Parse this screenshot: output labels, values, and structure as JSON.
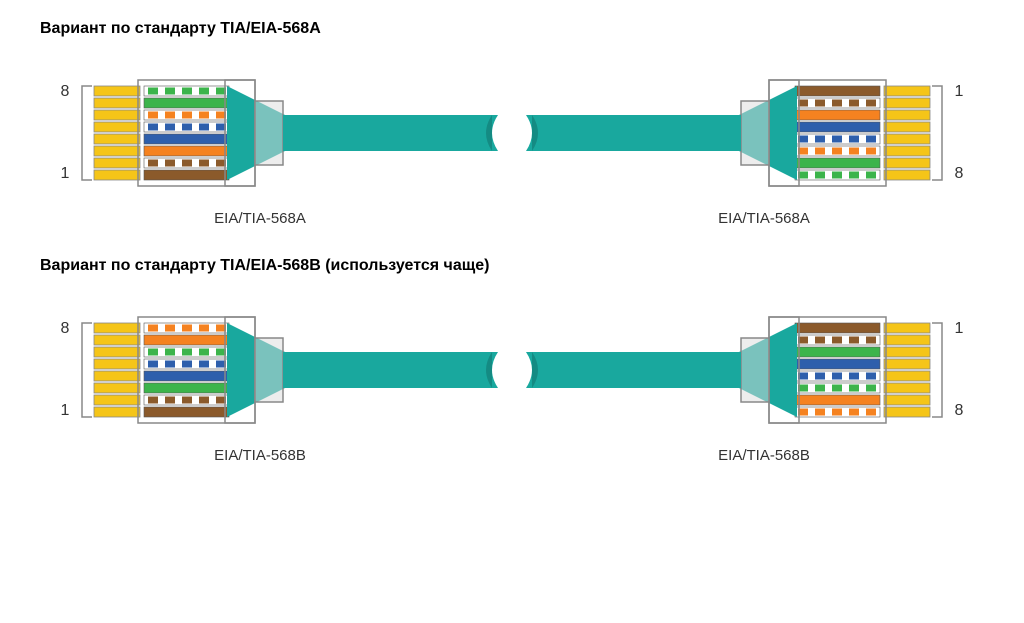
{
  "standards": {
    "A": {
      "title": "Вариант по стандарту TIA/EIA-568A",
      "label": "EIA/TIA-568A",
      "wires": [
        {
          "color": "#8B5A2B",
          "stripe": false,
          "stripe_color": null
        },
        {
          "color": "#ffffff",
          "stripe": true,
          "stripe_color": "#8B5A2B"
        },
        {
          "color": "#F58220",
          "stripe": false,
          "stripe_color": null
        },
        {
          "color": "#2E5FAC",
          "stripe": false,
          "stripe_color": null
        },
        {
          "color": "#ffffff",
          "stripe": true,
          "stripe_color": "#2E5FAC"
        },
        {
          "color": "#ffffff",
          "stripe": true,
          "stripe_color": "#F58220"
        },
        {
          "color": "#3CB44B",
          "stripe": false,
          "stripe_color": null
        },
        {
          "color": "#ffffff",
          "stripe": true,
          "stripe_color": "#3CB44B"
        }
      ]
    },
    "B": {
      "title": "Вариант по стандарту TIA/EIA-568B (используется чаще)",
      "label": "EIA/TIA-568B",
      "wires": [
        {
          "color": "#8B5A2B",
          "stripe": false,
          "stripe_color": null
        },
        {
          "color": "#ffffff",
          "stripe": true,
          "stripe_color": "#8B5A2B"
        },
        {
          "color": "#3CB44B",
          "stripe": false,
          "stripe_color": null
        },
        {
          "color": "#2E5FAC",
          "stripe": false,
          "stripe_color": null
        },
        {
          "color": "#ffffff",
          "stripe": true,
          "stripe_color": "#2E5FAC"
        },
        {
          "color": "#ffffff",
          "stripe": true,
          "stripe_color": "#3CB44B"
        },
        {
          "color": "#F58220",
          "stripe": false,
          "stripe_color": null
        },
        {
          "color": "#ffffff",
          "stripe": true,
          "stripe_color": "#F58220"
        }
      ]
    }
  },
  "pin_contact_color": "#F5C518",
  "cable_color": "#19A89E",
  "cable_color_dark": "#148B83",
  "connector_stroke": "#888888",
  "pin_bracket_stroke": "#888888",
  "pin_top_label": "8",
  "pin_bottom_label": "1",
  "right_pin_top_label": "1",
  "right_pin_bottom_label": "8"
}
